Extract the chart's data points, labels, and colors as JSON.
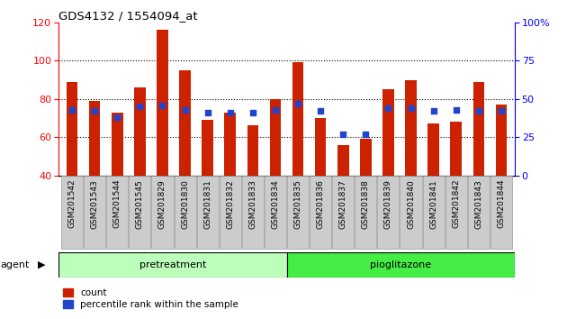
{
  "title": "GDS4132 / 1554094_at",
  "samples": [
    "GSM201542",
    "GSM201543",
    "GSM201544",
    "GSM201545",
    "GSM201829",
    "GSM201830",
    "GSM201831",
    "GSM201832",
    "GSM201833",
    "GSM201834",
    "GSM201835",
    "GSM201836",
    "GSM201837",
    "GSM201838",
    "GSM201839",
    "GSM201840",
    "GSM201841",
    "GSM201842",
    "GSM201843",
    "GSM201844"
  ],
  "count_values": [
    89,
    79,
    73,
    86,
    116,
    95,
    69,
    73,
    66,
    80,
    99,
    70,
    56,
    59,
    85,
    90,
    67,
    68,
    89,
    77
  ],
  "percentile_values": [
    43,
    42,
    38,
    45,
    46,
    43,
    41,
    41,
    41,
    43,
    47,
    42,
    27,
    27,
    44,
    44,
    42,
    43,
    42,
    42
  ],
  "ymin": 40,
  "ymax": 120,
  "yticks": [
    40,
    60,
    80,
    100,
    120
  ],
  "y2ticks": [
    0,
    25,
    50,
    75,
    100
  ],
  "bar_color": "#cc2200",
  "dot_color": "#2244cc",
  "pretreatment_count": 10,
  "pioglitazone_count": 10,
  "pretreatment_label": "pretreatment",
  "pioglitazone_label": "pioglitazone",
  "agent_label": "agent",
  "legend_count_label": "count",
  "legend_pct_label": "percentile rank within the sample",
  "light_green": "#bbffbb",
  "dark_green": "#44ee44",
  "bar_width": 0.5
}
